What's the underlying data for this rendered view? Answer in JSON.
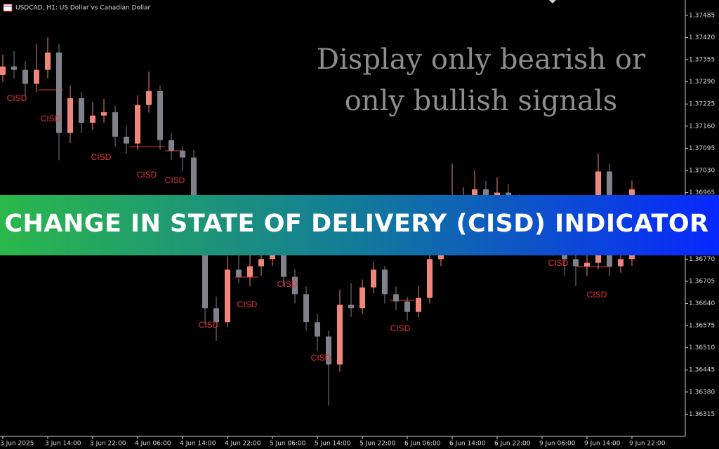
{
  "chart_data": {
    "type": "candlestick",
    "title": "USDCAD, H1:  US Dollar vs Canadian Dollar",
    "annotations": [
      "Display only bearish or",
      "only bullish signals"
    ],
    "signals": [
      "CISD",
      "CISD",
      "CISD",
      "CISD",
      "CISD",
      "CISD",
      "CISD",
      "CISD",
      "CISD",
      "CISD",
      "CISD",
      "CISD"
    ],
    "up_color": "#f0857a",
    "down_color": "#80818a",
    "ylim": [
      1.3625,
      1.3753
    ],
    "yticks": [
      {
        "value": 1.37485,
        "label": "1.37485"
      },
      {
        "value": 1.3742,
        "label": "1.37420"
      },
      {
        "value": 1.37355,
        "label": "1.37355"
      },
      {
        "value": 1.3729,
        "label": "1.37290"
      },
      {
        "value": 1.37225,
        "label": "1.37225"
      },
      {
        "value": 1.3716,
        "label": "1.37160"
      },
      {
        "value": 1.37095,
        "label": "1.37095"
      },
      {
        "value": 1.3703,
        "label": "1.37030"
      },
      {
        "value": 1.36965,
        "label": "1.36965"
      },
      {
        "value": 1.3677,
        "label": "1.36770"
      },
      {
        "value": 1.36705,
        "label": "1.36705"
      },
      {
        "value": 1.3664,
        "label": "1.36640"
      },
      {
        "value": 1.36575,
        "label": "1.36575"
      },
      {
        "value": 1.3651,
        "label": "1.36510"
      },
      {
        "value": 1.36445,
        "label": "1.36445"
      },
      {
        "value": 1.3638,
        "label": "1.36380"
      },
      {
        "value": 1.36315,
        "label": "1.36315"
      }
    ],
    "xticks": [
      {
        "value": 0,
        "label": "3 Jun 2025"
      },
      {
        "value": 4,
        "label": "3 Jun 14:00"
      },
      {
        "value": 8,
        "label": "3 Jun 22:00"
      },
      {
        "value": 12,
        "label": "4 Jun 06:00"
      },
      {
        "value": 16,
        "label": "4 Jun 14:00"
      },
      {
        "value": 20,
        "label": "4 Jun 22:00"
      },
      {
        "value": 24,
        "label": "5 Jun 06:00"
      },
      {
        "value": 28,
        "label": "5 Jun 14:00"
      },
      {
        "value": 32,
        "label": "5 Jun 22:00"
      },
      {
        "value": 36,
        "label": "6 Jun 06:00"
      },
      {
        "value": 40,
        "label": "6 Jun 14:00"
      },
      {
        "value": 44,
        "label": "6 Jun 22:00"
      },
      {
        "value": 48,
        "label": "9 Jun 06:00"
      },
      {
        "value": 52,
        "label": "9 Jun 14:00"
      },
      {
        "value": 56,
        "label": "9 Jun 22:00"
      }
    ],
    "ohlc": [
      [
        1.3731,
        1.3737,
        1.3729,
        1.37335
      ],
      [
        1.37335,
        1.3738,
        1.373,
        1.37325
      ],
      [
        1.37325,
        1.3735,
        1.3725,
        1.37284
      ],
      [
        1.37284,
        1.374,
        1.3726,
        1.37325
      ],
      [
        1.37325,
        1.3742,
        1.373,
        1.37376
      ],
      [
        1.37376,
        1.374,
        1.3706,
        1.3714
      ],
      [
        1.3714,
        1.3728,
        1.3711,
        1.37242
      ],
      [
        1.37242,
        1.3726,
        1.3714,
        1.3717
      ],
      [
        1.3717,
        1.3723,
        1.3715,
        1.37191
      ],
      [
        1.37191,
        1.3724,
        1.3717,
        1.37201
      ],
      [
        1.37201,
        1.3722,
        1.371,
        1.37129
      ],
      [
        1.37129,
        1.3716,
        1.3708,
        1.37109
      ],
      [
        1.37109,
        1.3725,
        1.3709,
        1.37222
      ],
      [
        1.37222,
        1.3732,
        1.372,
        1.37263
      ],
      [
        1.37263,
        1.3728,
        1.3709,
        1.37119
      ],
      [
        1.37119,
        1.3714,
        1.3706,
        1.37088
      ],
      [
        1.37088,
        1.371,
        1.3703,
        1.37068
      ],
      [
        1.37068,
        1.3709,
        1.369,
        1.36934
      ],
      [
        1.36934,
        1.3695,
        1.3658,
        1.36626
      ],
      [
        1.36626,
        1.3666,
        1.3653,
        1.36585
      ],
      [
        1.36585,
        1.3678,
        1.3657,
        1.36739
      ],
      [
        1.36739,
        1.368,
        1.367,
        1.36718
      ],
      [
        1.36718,
        1.3679,
        1.3669,
        1.36749
      ],
      [
        1.36749,
        1.368,
        1.3672,
        1.3677
      ],
      [
        1.3677,
        1.3683,
        1.3675,
        1.3679
      ],
      [
        1.3679,
        1.3681,
        1.3669,
        1.36718
      ],
      [
        1.36718,
        1.3674,
        1.3664,
        1.36667
      ],
      [
        1.36667,
        1.3669,
        1.3656,
        1.36585
      ],
      [
        1.36585,
        1.3661,
        1.365,
        1.36543
      ],
      [
        1.36543,
        1.3656,
        1.3634,
        1.36461
      ],
      [
        1.36461,
        1.3668,
        1.3644,
        1.36636
      ],
      [
        1.36636,
        1.367,
        1.366,
        1.36626
      ],
      [
        1.36626,
        1.3671,
        1.3661,
        1.36687
      ],
      [
        1.36687,
        1.3676,
        1.3667,
        1.36739
      ],
      [
        1.36739,
        1.3675,
        1.3664,
        1.36667
      ],
      [
        1.36667,
        1.3669,
        1.3662,
        1.36646
      ],
      [
        1.36646,
        1.3666,
        1.3659,
        1.36615
      ],
      [
        1.36615,
        1.3669,
        1.366,
        1.36656
      ],
      [
        1.36656,
        1.368,
        1.3664,
        1.3677
      ],
      [
        1.3677,
        1.3685,
        1.3675,
        1.36821
      ],
      [
        1.36821,
        1.3705,
        1.368,
        1.36913
      ],
      [
        1.36913,
        1.3698,
        1.3688,
        1.36934
      ],
      [
        1.36934,
        1.3703,
        1.3691,
        1.36975
      ],
      [
        1.36975,
        1.37,
        1.3693,
        1.36955
      ],
      [
        1.36955,
        1.3701,
        1.3694,
        1.36965
      ],
      [
        1.36965,
        1.3699,
        1.3692,
        1.36944
      ],
      [
        1.36944,
        1.3696,
        1.3689,
        1.36913
      ],
      [
        1.36913,
        1.3693,
        1.3685,
        1.36872
      ],
      [
        1.36872,
        1.3689,
        1.3681,
        1.36831
      ],
      [
        1.36831,
        1.3685,
        1.3678,
        1.368
      ],
      [
        1.368,
        1.3682,
        1.3672,
        1.3677
      ],
      [
        1.3677,
        1.3679,
        1.3669,
        1.36749
      ],
      [
        1.36749,
        1.3679,
        1.3672,
        1.36759
      ],
      [
        1.36759,
        1.3708,
        1.3674,
        1.37027
      ],
      [
        1.37027,
        1.3705,
        1.3672,
        1.36749
      ],
      [
        1.36749,
        1.368,
        1.3673,
        1.3677
      ],
      [
        1.3677,
        1.37,
        1.3675,
        1.36975
      ]
    ]
  },
  "banner": {
    "title": "CHANGE IN STATE OF DELIVERY (CISD) INDICATOR"
  }
}
